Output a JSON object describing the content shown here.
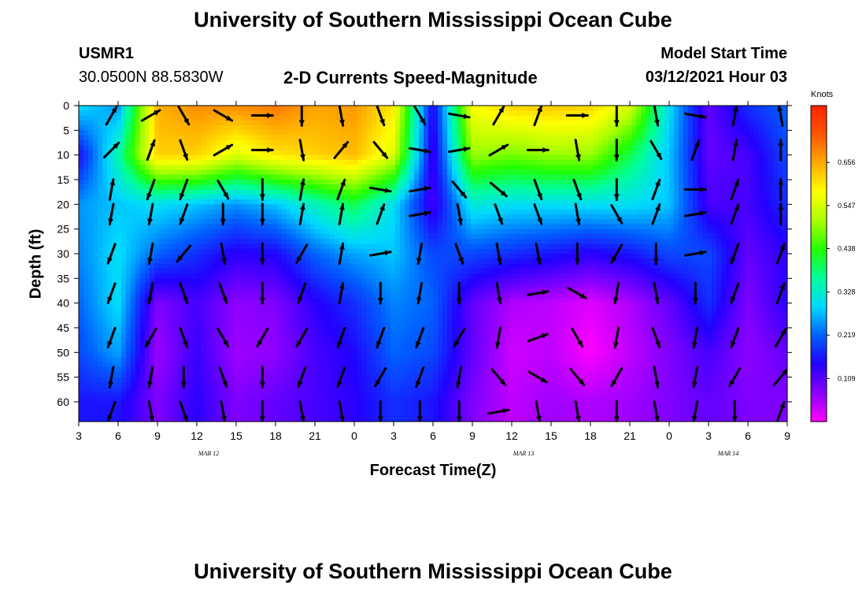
{
  "header": {
    "title": "University of Southern Mississippi Ocean Cube",
    "station_id": "USMR1",
    "location": "30.0500N 88.5830W",
    "subtitle": "2-D Currents Speed-Magnitude",
    "model_start_label": "Model Start Time",
    "model_start_value": "03/12/2021 Hour 03"
  },
  "footer": {
    "title": "University of Southern Mississippi Ocean Cube"
  },
  "colors": {
    "ramp": [
      "#ff00ff",
      "#8a00ff",
      "#2200ff",
      "#0060ff",
      "#00d8ff",
      "#00ff9a",
      "#22ff00",
      "#aaff00",
      "#ffff00",
      "#ffaa00",
      "#ff5500",
      "#ff2200"
    ],
    "arrow": "#000000"
  },
  "chart_data": {
    "type": "heatmap",
    "title": "2-D Currents Speed-Magnitude",
    "xlabel": "Forecast Time(Z)",
    "ylabel": "Depth (ft)",
    "x_ticks": [
      "3",
      "6",
      "9",
      "12",
      "15",
      "18",
      "21",
      "0",
      "3",
      "6",
      "9",
      "12",
      "15",
      "18",
      "21",
      "0",
      "3",
      "6",
      "9"
    ],
    "y_ticks": [
      "0",
      "5",
      "10",
      "15",
      "20",
      "25",
      "30",
      "35",
      "40",
      "45",
      "50",
      "55",
      "60"
    ],
    "ylim": [
      0,
      64
    ],
    "date_labels": [
      {
        "label": "MAR 12",
        "hour_index": 3.3
      },
      {
        "label": "MAR 13",
        "hour_index": 11.3
      },
      {
        "label": "MAR 14",
        "hour_index": 16.5
      }
    ],
    "colorbar": {
      "unit": "Knots",
      "ticks": [
        "0.109",
        "0.219",
        "0.328",
        "0.438",
        "0.547",
        "0.656"
      ],
      "range": [
        0.0,
        0.8
      ]
    },
    "speed_grid": {
      "x_hours": [
        3,
        6,
        9,
        12,
        15,
        18,
        21,
        24,
        27,
        30,
        33,
        36,
        39,
        42,
        45,
        48,
        51,
        54,
        57
      ],
      "depths": [
        0,
        10,
        20,
        30,
        40,
        50,
        60
      ],
      "values": [
        [
          0.3,
          0.25,
          0.65,
          0.68,
          0.68,
          0.7,
          0.66,
          0.67,
          0.6,
          0.14,
          0.58,
          0.62,
          0.63,
          0.62,
          0.55,
          0.3,
          0.1,
          0.18,
          0.22
        ],
        [
          0.15,
          0.35,
          0.62,
          0.62,
          0.55,
          0.6,
          0.62,
          0.64,
          0.55,
          0.12,
          0.5,
          0.48,
          0.5,
          0.5,
          0.4,
          0.28,
          0.1,
          0.12,
          0.2
        ],
        [
          0.25,
          0.28,
          0.3,
          0.28,
          0.25,
          0.28,
          0.34,
          0.4,
          0.3,
          0.12,
          0.32,
          0.3,
          0.3,
          0.3,
          0.3,
          0.28,
          0.12,
          0.12,
          0.18
        ],
        [
          0.24,
          0.3,
          0.22,
          0.18,
          0.14,
          0.15,
          0.22,
          0.26,
          0.28,
          0.2,
          0.2,
          0.18,
          0.16,
          0.14,
          0.16,
          0.2,
          0.2,
          0.1,
          0.14
        ],
        [
          0.22,
          0.3,
          0.08,
          0.12,
          0.07,
          0.08,
          0.14,
          0.18,
          0.24,
          0.22,
          0.1,
          0.05,
          0.04,
          0.02,
          0.05,
          0.1,
          0.18,
          0.08,
          0.14
        ],
        [
          0.2,
          0.26,
          0.06,
          0.13,
          0.06,
          0.07,
          0.12,
          0.15,
          0.22,
          0.2,
          0.1,
          0.03,
          0.04,
          0.0,
          0.04,
          0.08,
          0.12,
          0.07,
          0.1
        ],
        [
          0.16,
          0.16,
          0.08,
          0.14,
          0.08,
          0.1,
          0.12,
          0.14,
          0.18,
          0.16,
          0.08,
          0.04,
          0.06,
          0.05,
          0.06,
          0.08,
          0.1,
          0.08,
          0.08
        ]
      ]
    },
    "vectors": {
      "columns_hours": [
        5.5,
        8.5,
        11,
        14,
        17,
        20,
        23,
        26,
        29,
        32,
        35,
        38,
        41,
        44,
        47,
        50,
        53,
        56.5
      ],
      "depths": [
        2,
        9,
        17,
        22,
        30,
        38,
        47,
        55,
        62
      ],
      "directions_deg": [
        [
          30,
          60,
          150,
          120,
          90,
          180,
          170,
          160,
          150,
          100,
          30,
          20,
          90,
          180,
          170,
          100,
          10,
          350
        ],
        [
          45,
          20,
          160,
          60,
          90,
          170,
          40,
          140,
          100,
          80,
          60,
          90,
          170,
          180,
          150,
          20,
          10,
          0
        ],
        [
          10,
          200,
          200,
          150,
          180,
          10,
          20,
          100,
          80,
          140,
          130,
          160,
          160,
          180,
          20,
          90,
          20,
          0
        ],
        [
          190,
          190,
          200,
          180,
          180,
          10,
          10,
          20,
          80,
          170,
          160,
          160,
          170,
          150,
          20,
          80,
          20,
          0
        ],
        [
          200,
          190,
          220,
          170,
          180,
          210,
          10,
          80,
          190,
          160,
          170,
          170,
          180,
          210,
          180,
          80,
          200,
          20
        ],
        [
          200,
          190,
          160,
          160,
          180,
          200,
          10,
          180,
          190,
          180,
          170,
          80,
          120,
          190,
          170,
          180,
          200,
          20
        ],
        [
          200,
          210,
          160,
          150,
          210,
          210,
          200,
          200,
          200,
          210,
          190,
          70,
          150,
          190,
          160,
          190,
          200,
          30
        ],
        [
          190,
          190,
          180,
          160,
          180,
          200,
          200,
          210,
          200,
          190,
          140,
          120,
          140,
          210,
          170,
          190,
          210,
          40
        ],
        [
          200,
          170,
          160,
          170,
          180,
          170,
          170,
          180,
          180,
          180,
          80,
          170,
          170,
          180,
          170,
          190,
          180,
          20
        ]
      ]
    }
  }
}
